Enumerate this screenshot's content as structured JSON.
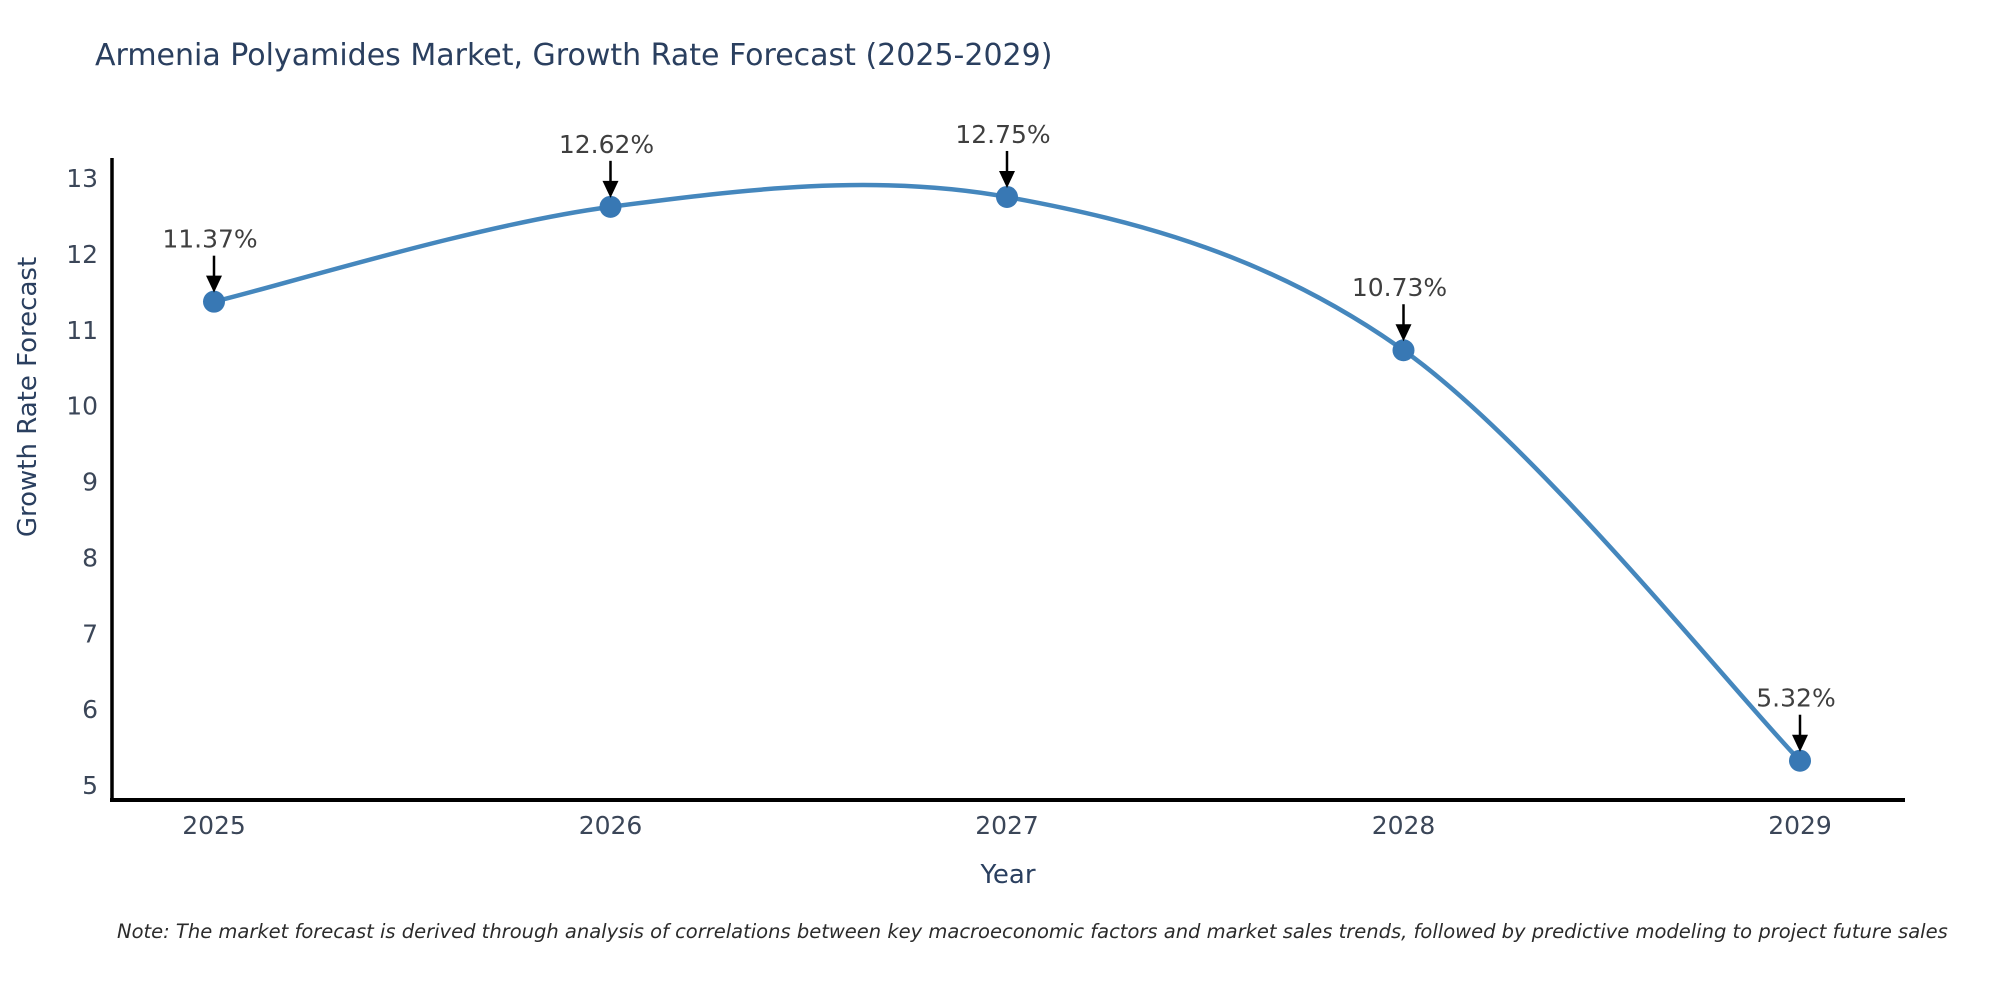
{
  "title": "Armenia Polyamides Market, Growth Rate Forecast (2025-2029)",
  "note": "Note: The market forecast is derived through analysis of correlations between key macroeconomic factors and market sales trends, followed by predictive modeling to project future sales",
  "colors": {
    "line": "#4587bd",
    "marker": "#3878b4",
    "axis_line": "#000000",
    "tick_label": "#3b4658",
    "title_text": "#2a3f5f",
    "annotation_text": "#3f3f3f",
    "arrow": "#000000",
    "background": "#ffffff"
  },
  "chart_data": {
    "type": "line",
    "line_shape": "spline",
    "title": "Armenia Polyamides Market, Growth Rate Forecast (2025-2029)",
    "xlabel": "Year",
    "ylabel": "Growth Rate Forecast",
    "x": [
      2025,
      2026,
      2027,
      2028,
      2029
    ],
    "values": [
      11.37,
      12.62,
      12.75,
      10.73,
      5.32
    ],
    "point_labels": [
      "11.37%",
      "12.62%",
      "12.75%",
      "10.73%",
      "5.32%"
    ],
    "xticks": [
      "2025",
      "2026",
      "2027",
      "2028",
      "2029"
    ],
    "yticks": [
      "5",
      "6",
      "7",
      "8",
      "9",
      "10",
      "11",
      "12",
      "13"
    ],
    "ytick_values": [
      5,
      6,
      7,
      8,
      9,
      10,
      11,
      12,
      13
    ],
    "ylim": [
      5,
      13
    ],
    "grid": false,
    "legend": false,
    "markers": true,
    "annotations_with_arrows": true
  }
}
